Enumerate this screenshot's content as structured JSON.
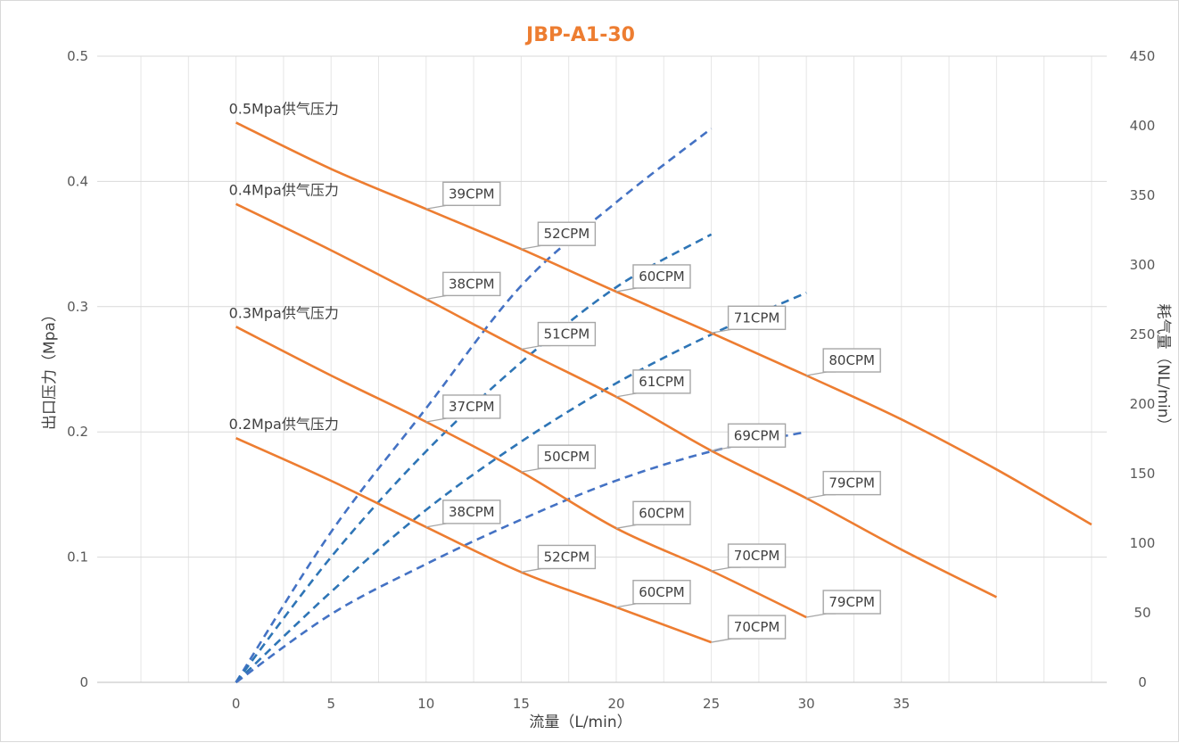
{
  "chart_data": {
    "type": "line",
    "title": "JBP-A1-30",
    "xlabel": "流量（L/min）",
    "ylabel": "出口压力（Mpa）",
    "y2label": "耗气量（NL/min）",
    "xlim": [
      -7.3,
      45.8
    ],
    "ylim": [
      0,
      0.5
    ],
    "y2lim": [
      0,
      450
    ],
    "x_ticks": [
      "0",
      "5",
      "10",
      "15",
      "20",
      "25",
      "30",
      "35"
    ],
    "y_ticks": [
      "0",
      "0.1",
      "0.2",
      "0.3",
      "0.4",
      "0.5"
    ],
    "y2_ticks": [
      "0",
      "50",
      "100",
      "150",
      "200",
      "250",
      "300",
      "350",
      "400",
      "450"
    ],
    "grid": true,
    "pressure_series": [
      {
        "name": "0.5Mpa供气压力",
        "color": "#ED7D31",
        "x": [
          0,
          5,
          10,
          15,
          20,
          25,
          30,
          35,
          40,
          45
        ],
        "y": [
          0.447,
          0.41,
          0.378,
          0.346,
          0.312,
          0.279,
          0.245,
          0.21,
          0.17,
          0.126
        ]
      },
      {
        "name": "0.4Mpa供气压力",
        "color": "#ED7D31",
        "x": [
          0,
          5,
          10,
          15,
          20,
          25,
          30,
          35,
          40
        ],
        "y": [
          0.382,
          0.345,
          0.306,
          0.266,
          0.228,
          0.185,
          0.147,
          0.106,
          0.068
        ]
      },
      {
        "name": "0.3Mpa供气压力",
        "color": "#ED7D31",
        "x": [
          0,
          5,
          10,
          15,
          20,
          25,
          30
        ],
        "y": [
          0.284,
          0.245,
          0.208,
          0.168,
          0.123,
          0.089,
          0.052
        ]
      },
      {
        "name": "0.2Mpa供气压力",
        "color": "#ED7D31",
        "x": [
          0,
          5,
          10,
          15,
          20,
          25
        ],
        "y": [
          0.195,
          0.161,
          0.124,
          0.088,
          0.06,
          0.032
        ]
      }
    ],
    "air_series": [
      {
        "color": "#4472C4",
        "x": [
          0,
          5,
          10,
          15,
          20,
          25
        ],
        "y": [
          0,
          108,
          197,
          285,
          345,
          398
        ]
      },
      {
        "color": "#2E75B6",
        "x": [
          0,
          5,
          10,
          15,
          20,
          25
        ],
        "y": [
          0,
          90,
          166,
          230,
          284,
          322
        ]
      },
      {
        "color": "#2E75B6",
        "x": [
          0,
          5,
          10,
          15,
          20,
          25,
          30
        ],
        "y": [
          0,
          65,
          124,
          173,
          215,
          250,
          280
        ]
      },
      {
        "color": "#4472C4",
        "x": [
          0,
          5,
          10,
          15,
          20,
          25,
          30
        ],
        "y": [
          0,
          49,
          85,
          117,
          145,
          166,
          180
        ]
      }
    ],
    "cpm_callouts": [
      {
        "label": "39CPM",
        "x": 10,
        "y": 0.378
      },
      {
        "label": "52CPM",
        "x": 15,
        "y": 0.346
      },
      {
        "label": "60CPM",
        "x": 20,
        "y": 0.312
      },
      {
        "label": "71CPM",
        "x": 25,
        "y": 0.279
      },
      {
        "label": "80CPM",
        "x": 30,
        "y": 0.245
      },
      {
        "label": "38CPM",
        "x": 10,
        "y": 0.306
      },
      {
        "label": "51CPM",
        "x": 15,
        "y": 0.266
      },
      {
        "label": "61CPM",
        "x": 20,
        "y": 0.228
      },
      {
        "label": "69CPM",
        "x": 25,
        "y": 0.185
      },
      {
        "label": "79CPM",
        "x": 30,
        "y": 0.147
      },
      {
        "label": "37CPM",
        "x": 10,
        "y": 0.208
      },
      {
        "label": "50CPM",
        "x": 15,
        "y": 0.168
      },
      {
        "label": "60CPM",
        "x": 20,
        "y": 0.123
      },
      {
        "label": "70CPM",
        "x": 25,
        "y": 0.089
      },
      {
        "label": "79CPM",
        "x": 30,
        "y": 0.052
      },
      {
        "label": "38CPM",
        "x": 10,
        "y": 0.124
      },
      {
        "label": "52CPM",
        "x": 15,
        "y": 0.088
      },
      {
        "label": "60CPM",
        "x": 20,
        "y": 0.06
      },
      {
        "label": "70CPM",
        "x": 25,
        "y": 0.032
      }
    ]
  }
}
